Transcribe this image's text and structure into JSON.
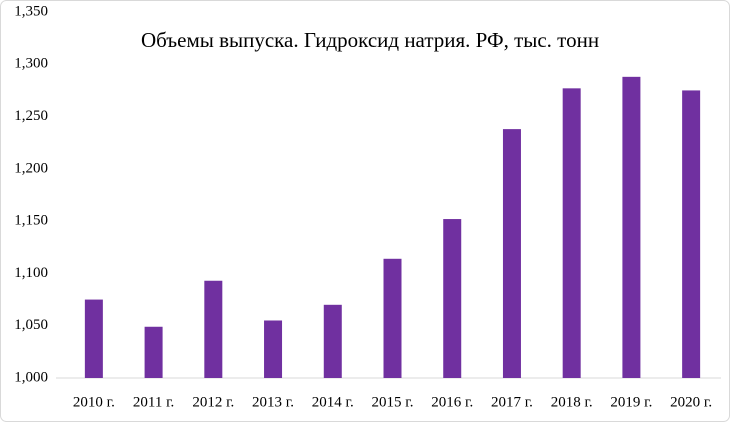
{
  "chart_data": {
    "type": "bar",
    "title": "Объемы выпуска. Гидроксид натрия.  РФ, тыс. тонн",
    "categories": [
      "2010 г.",
      "2011 г.",
      "2012 г.",
      "2013 г.",
      "2014 г.",
      "2015 г.",
      "2016 г.",
      "2017 г.",
      "2018 г.",
      "2019 г.",
      "2020 г."
    ],
    "values": [
      1075,
      1049,
      1093,
      1055,
      1070,
      1114,
      1152,
      1238,
      1277,
      1288,
      1275
    ],
    "color": "#7030a0",
    "ylim": [
      1000,
      1350
    ],
    "yticks": [
      {
        "value": 1000,
        "label": "1,000"
      },
      {
        "value": 1050,
        "label": "1,050"
      },
      {
        "value": 1100,
        "label": "1,100"
      },
      {
        "value": 1150,
        "label": "1,150"
      },
      {
        "value": 1200,
        "label": "1,200"
      },
      {
        "value": 1250,
        "label": "1,250"
      },
      {
        "value": 1300,
        "label": "1,300"
      },
      {
        "value": 1350,
        "label": "1,350"
      }
    ],
    "grid": false
  }
}
